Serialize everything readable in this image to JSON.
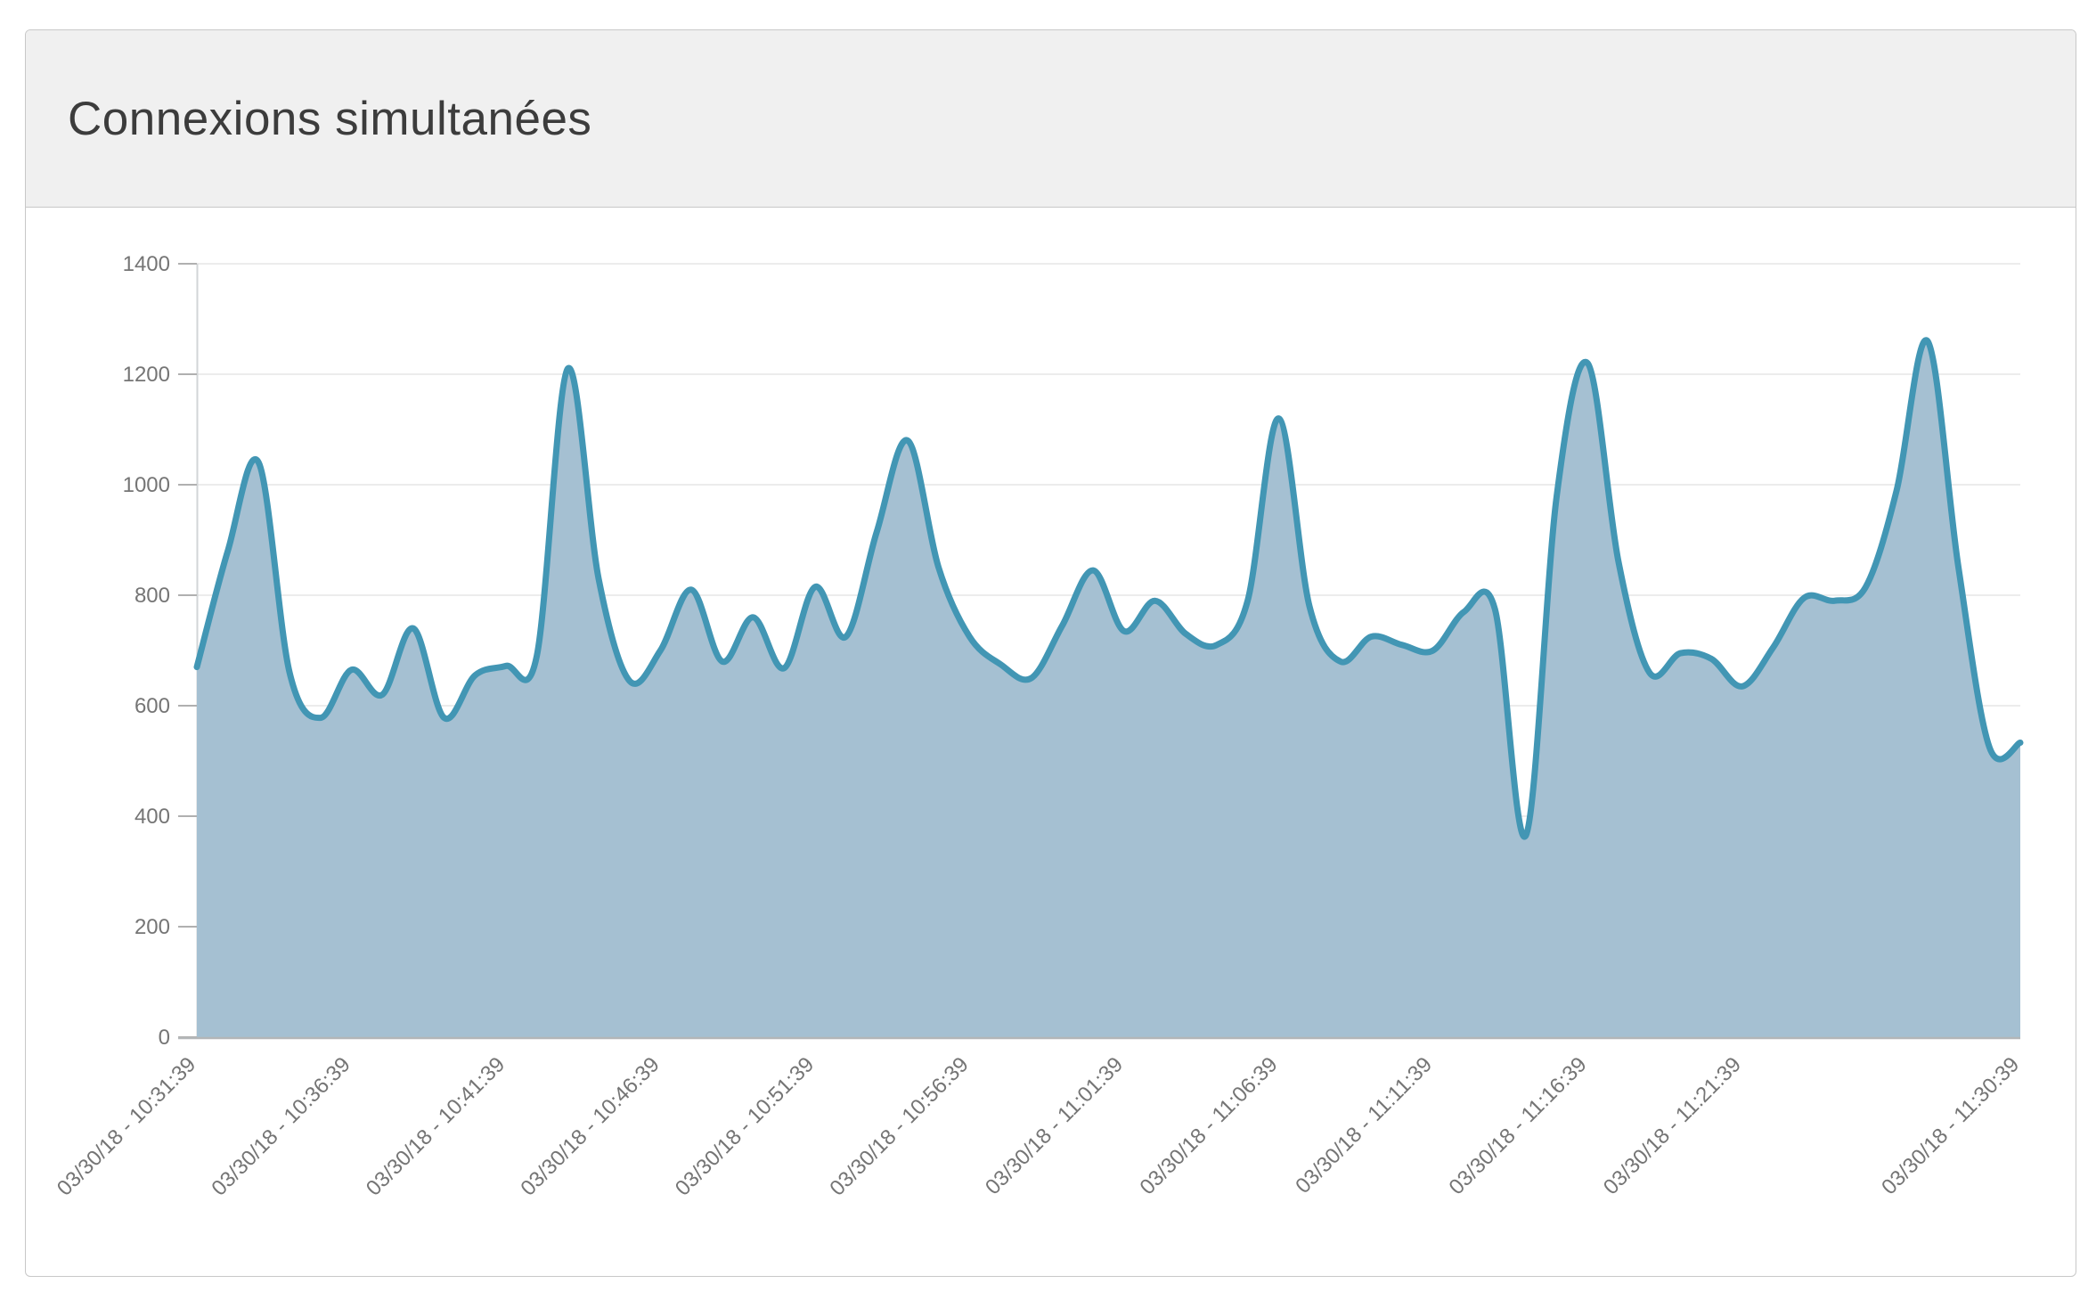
{
  "header": {
    "title": "Connexions simultanées"
  },
  "chart_data": {
    "type": "area",
    "title": "Connexions simultanées",
    "x_start": "03/30/18 - 10:31:39",
    "x_end": "03/30/18 - 11:30:39",
    "x_interval_seconds": 60,
    "values": [
      670,
      880,
      1040,
      660,
      578,
      665,
      620,
      740,
      578,
      655,
      672,
      690,
      1210,
      830,
      645,
      700,
      810,
      680,
      760,
      668,
      815,
      725,
      915,
      1080,
      850,
      725,
      675,
      650,
      745,
      845,
      735,
      790,
      730,
      710,
      790,
      1120,
      780,
      680,
      725,
      710,
      700,
      770,
      775,
      365,
      980,
      1220,
      860,
      660,
      695,
      685,
      635,
      705,
      795,
      790,
      815,
      990,
      1260,
      850,
      525,
      533
    ],
    "x_tick_indices": [
      0,
      5,
      10,
      15,
      20,
      25,
      30,
      35,
      40,
      45,
      50,
      59
    ],
    "x_tick_labels": [
      "03/30/18 - 10:31:39",
      "03/30/18 - 10:36:39",
      "03/30/18 - 10:41:39",
      "03/30/18 - 10:46:39",
      "03/30/18 - 10:51:39",
      "03/30/18 - 10:56:39",
      "03/30/18 - 11:01:39",
      "03/30/18 - 11:06:39",
      "03/30/18 - 11:11:39",
      "03/30/18 - 11:16:39",
      "03/30/18 - 11:21:39",
      "03/30/18 - 11:30:39"
    ],
    "y_ticks": [
      0,
      200,
      400,
      600,
      800,
      1000,
      1200,
      1400
    ],
    "ylim": [
      0,
      1400
    ],
    "grid": "horizontal",
    "legend": false,
    "colors": {
      "line": "#4296b4",
      "fill": "#a5c0d2"
    }
  },
  "theme": {
    "pageBg": "#ffffff",
    "panelBg": "#ffffff",
    "panelBorder": "#c8c8c8",
    "headerBg": "#f0f0f0",
    "titleColor": "#3c3c3c",
    "labelColor": "#757575",
    "gridColor": "#ececec",
    "baselineColor": "#b3b6b8",
    "yAxisLineColor": "#d2d5d7",
    "tickColor": "#b0b0b0"
  }
}
